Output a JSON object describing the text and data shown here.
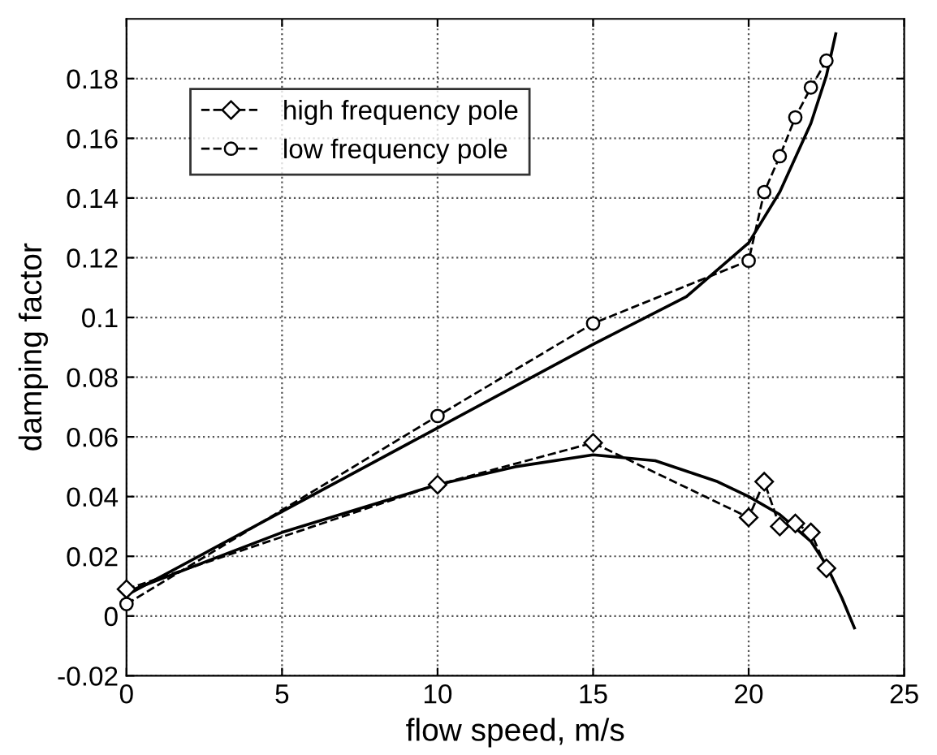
{
  "chart_data": {
    "type": "line",
    "xlabel": "flow speed, m/s",
    "ylabel": "damping factor",
    "xlim": [
      0,
      25
    ],
    "xticks": [
      0,
      5,
      10,
      15,
      20,
      25
    ],
    "ylim": [
      -0.02,
      0.2
    ],
    "yticks": [
      -0.02,
      0,
      0.02,
      0.04,
      0.06,
      0.08,
      0.1,
      0.12,
      0.14,
      0.16,
      0.18
    ],
    "grid": true,
    "legend": "top left",
    "series": [
      {
        "name": "high frequency pole",
        "color": "#000000",
        "marker": "diamond",
        "line_style": "dashed",
        "x": [
          0,
          10,
          15,
          20,
          20.5,
          21,
          21.5,
          22,
          22.5
        ],
        "values": [
          0.009,
          0.044,
          0.058,
          0.033,
          0.045,
          0.03,
          0.031,
          0.028,
          0.016
        ]
      },
      {
        "name": "low frequency pole",
        "color": "#000000",
        "marker": "circle",
        "line_style": "dashed",
        "x": [
          0,
          10,
          15,
          20,
          20.5,
          21,
          21.5,
          22,
          22.5
        ],
        "values": [
          0.004,
          0.067,
          0.098,
          0.119,
          0.142,
          0.154,
          0.167,
          0.177,
          0.186
        ]
      },
      {
        "color": "#000000",
        "marker": "none",
        "line_style": "solid",
        "x": [
          0,
          5,
          10,
          15,
          18,
          20,
          21,
          22,
          22.5,
          22.8
        ],
        "values": [
          0.007,
          0.035,
          0.063,
          0.091,
          0.107,
          0.125,
          0.142,
          0.165,
          0.181,
          0.195
        ]
      },
      {
        "color": "#000000",
        "marker": "none",
        "line_style": "solid",
        "x": [
          0,
          5,
          10,
          12.5,
          15,
          17,
          19,
          20,
          21,
          22,
          22.5,
          23,
          23.4
        ],
        "values": [
          0.008,
          0.028,
          0.044,
          0.05,
          0.054,
          0.052,
          0.045,
          0.04,
          0.034,
          0.025,
          0.017,
          0.006,
          -0.004
        ]
      }
    ]
  }
}
